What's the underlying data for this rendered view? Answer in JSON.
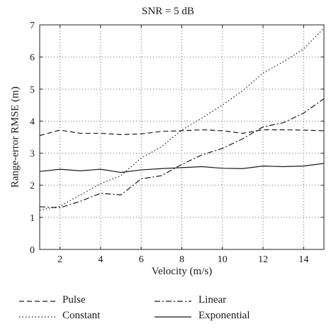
{
  "chart_data": {
    "type": "line",
    "title": "SNR = 5 dB",
    "xlabel": "Velocity (m/s)",
    "ylabel": "Range-error RMSE (m)",
    "xlim": [
      1,
      15
    ],
    "ylim": [
      0,
      7
    ],
    "xticks": [
      2,
      4,
      6,
      8,
      10,
      12,
      14
    ],
    "yticks": [
      0,
      1,
      2,
      3,
      4,
      5,
      6,
      7
    ],
    "grid": true,
    "legend_position": "below",
    "x": [
      1,
      2,
      3,
      4,
      5,
      6,
      7,
      8,
      9,
      10,
      11,
      12,
      13,
      14,
      15
    ],
    "series": [
      {
        "name": "Pulse",
        "dash": "dashed",
        "values": [
          3.55,
          3.72,
          3.62,
          3.62,
          3.58,
          3.6,
          3.68,
          3.7,
          3.73,
          3.7,
          3.62,
          3.73,
          3.73,
          3.72,
          3.7
        ]
      },
      {
        "name": "Constant",
        "dash": "dotted",
        "values": [
          1.22,
          1.35,
          1.7,
          2.05,
          2.3,
          2.85,
          3.2,
          3.72,
          4.1,
          4.5,
          4.95,
          5.5,
          5.85,
          6.25,
          6.9
        ]
      },
      {
        "name": "Linear",
        "dash": "dashdot",
        "values": [
          1.33,
          1.3,
          1.5,
          1.75,
          1.7,
          2.2,
          2.3,
          2.65,
          2.95,
          3.15,
          3.45,
          3.82,
          3.95,
          4.25,
          4.7
        ]
      },
      {
        "name": "Exponential",
        "dash": "solid",
        "values": [
          2.43,
          2.5,
          2.45,
          2.5,
          2.4,
          2.48,
          2.52,
          2.55,
          2.58,
          2.53,
          2.52,
          2.6,
          2.58,
          2.6,
          2.68
        ]
      }
    ]
  }
}
